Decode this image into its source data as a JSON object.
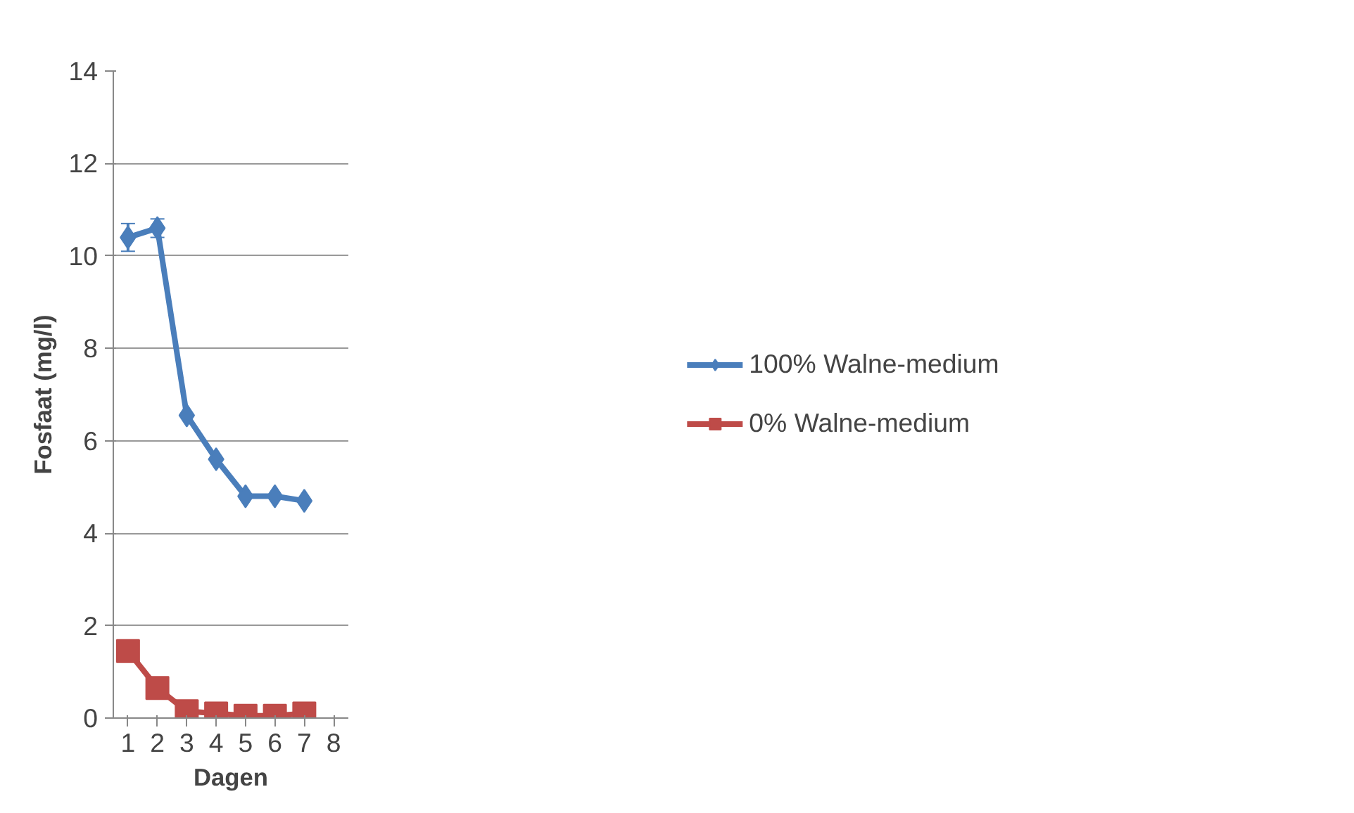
{
  "chart_data": {
    "type": "line",
    "xlabel": "Dagen",
    "ylabel": "Fosfaat (mg/l)",
    "categories": [
      "1",
      "2",
      "3",
      "4",
      "5",
      "6",
      "7",
      "8"
    ],
    "series": [
      {
        "name": "100% Walne-medium",
        "color": "#4a7ebb",
        "marker": "diamond",
        "values": [
          10.4,
          10.6,
          6.55,
          5.6,
          4.8,
          4.8,
          4.7,
          null
        ],
        "errors": [
          0.3,
          0.2,
          null,
          null,
          null,
          null,
          null,
          null
        ]
      },
      {
        "name": "0% Walne-medium",
        "color": "#be4b48",
        "marker": "square",
        "values": [
          1.45,
          0.65,
          0.15,
          0.1,
          0.05,
          0.05,
          0.1,
          null
        ],
        "errors": [
          0.2,
          null,
          null,
          null,
          null,
          null,
          null,
          null
        ]
      }
    ],
    "ylim": [
      0,
      14
    ],
    "yticks": [
      0,
      2,
      4,
      6,
      8,
      10,
      12,
      14
    ],
    "grid": "y",
    "legend": "right",
    "line_style": "solid"
  }
}
